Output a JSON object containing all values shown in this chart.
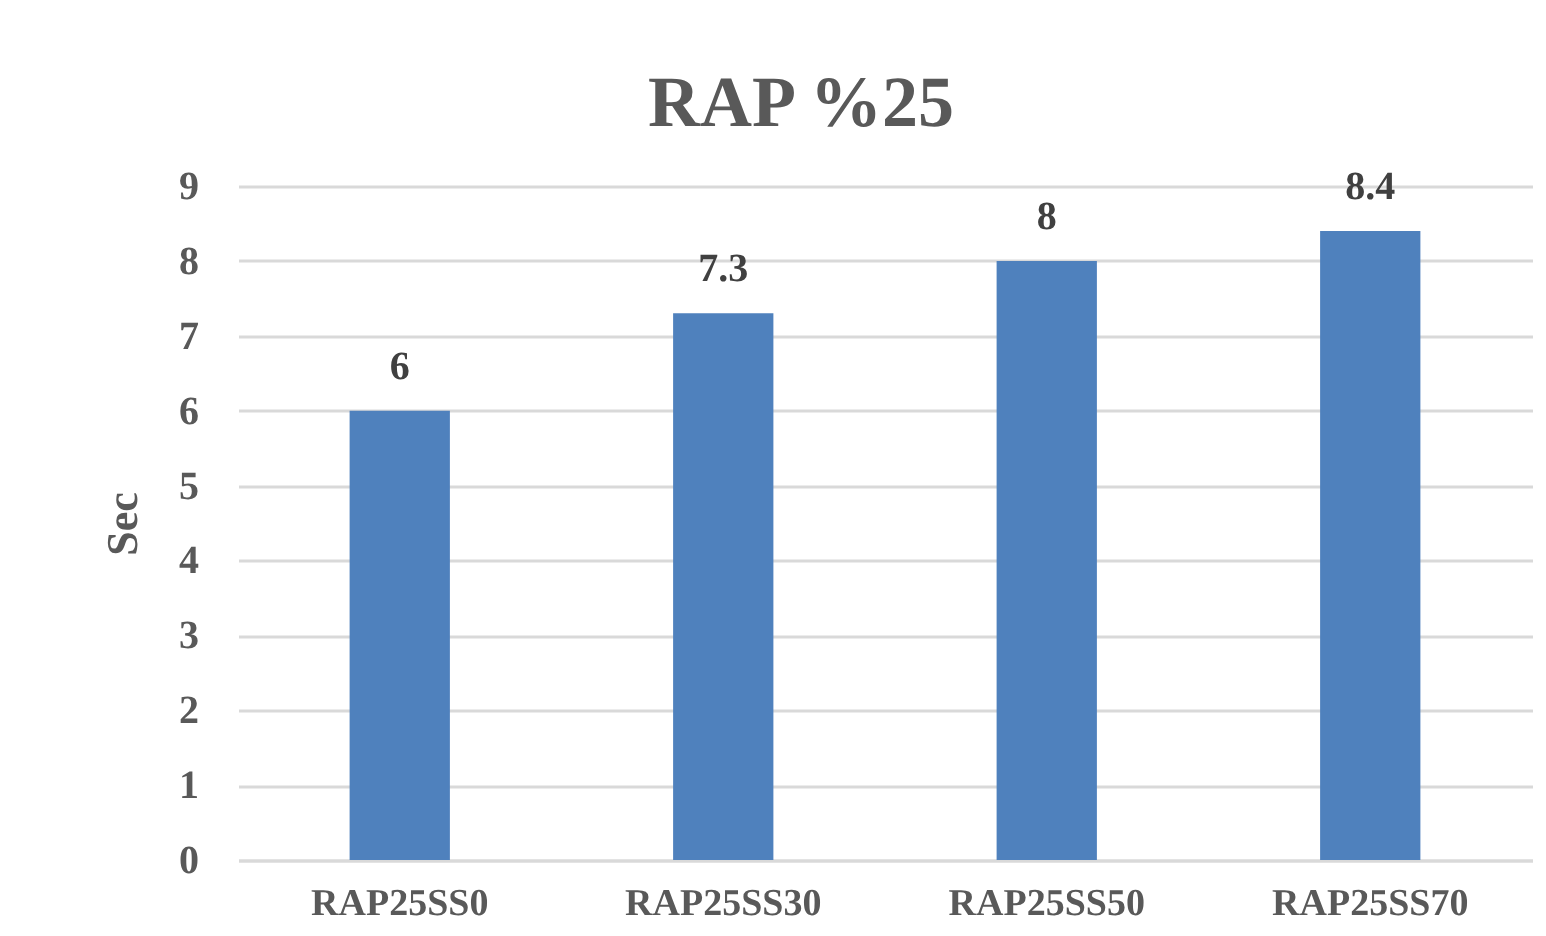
{
  "chart_data": {
    "type": "bar",
    "title": "RAP %25",
    "ylabel": "Sec",
    "categories": [
      "RAP25SS0",
      "RAP25SS30",
      "RAP25SS50",
      "RAP25SS70"
    ],
    "values": [
      6,
      7.3,
      8,
      8.4
    ],
    "color": "#4f81bd",
    "ylim": [
      0,
      9
    ],
    "yticks": [
      0,
      1,
      2,
      3,
      4,
      5,
      6,
      7,
      8,
      9
    ],
    "grid": "y",
    "data_labels": true
  }
}
